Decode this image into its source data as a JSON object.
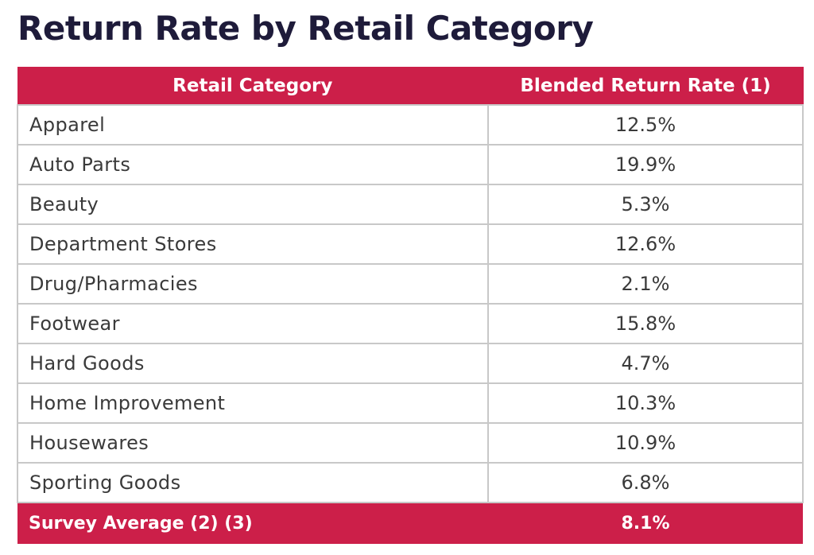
{
  "title": "Return Rate by Retail Category",
  "colors": {
    "header_background": "#cc1f49",
    "header_text": "#ffffff",
    "title_text": "#1e1b3a",
    "body_text": "#3a3a3a",
    "grid_lines": "#c8c8c8"
  },
  "chart_data": {
    "type": "table",
    "title": "Return Rate by Retail Category",
    "columns": [
      "Retail Category",
      "Blended Return Rate (1)"
    ],
    "rows": [
      {
        "category": "Apparel",
        "rate": "12.5%"
      },
      {
        "category": "Auto Parts",
        "rate": "19.9%"
      },
      {
        "category": "Beauty",
        "rate": "5.3%"
      },
      {
        "category": "Department Stores",
        "rate": "12.6%"
      },
      {
        "category": "Drug/Pharmacies",
        "rate": "2.1%"
      },
      {
        "category": "Footwear",
        "rate": "15.8%"
      },
      {
        "category": "Hard Goods",
        "rate": "4.7%"
      },
      {
        "category": "Home Improvement",
        "rate": "10.3%"
      },
      {
        "category": "Housewares",
        "rate": "10.9%"
      },
      {
        "category": "Sporting Goods",
        "rate": "6.8%"
      }
    ],
    "footer": {
      "category": "Survey Average (2) (3)",
      "rate": "8.1%"
    }
  }
}
